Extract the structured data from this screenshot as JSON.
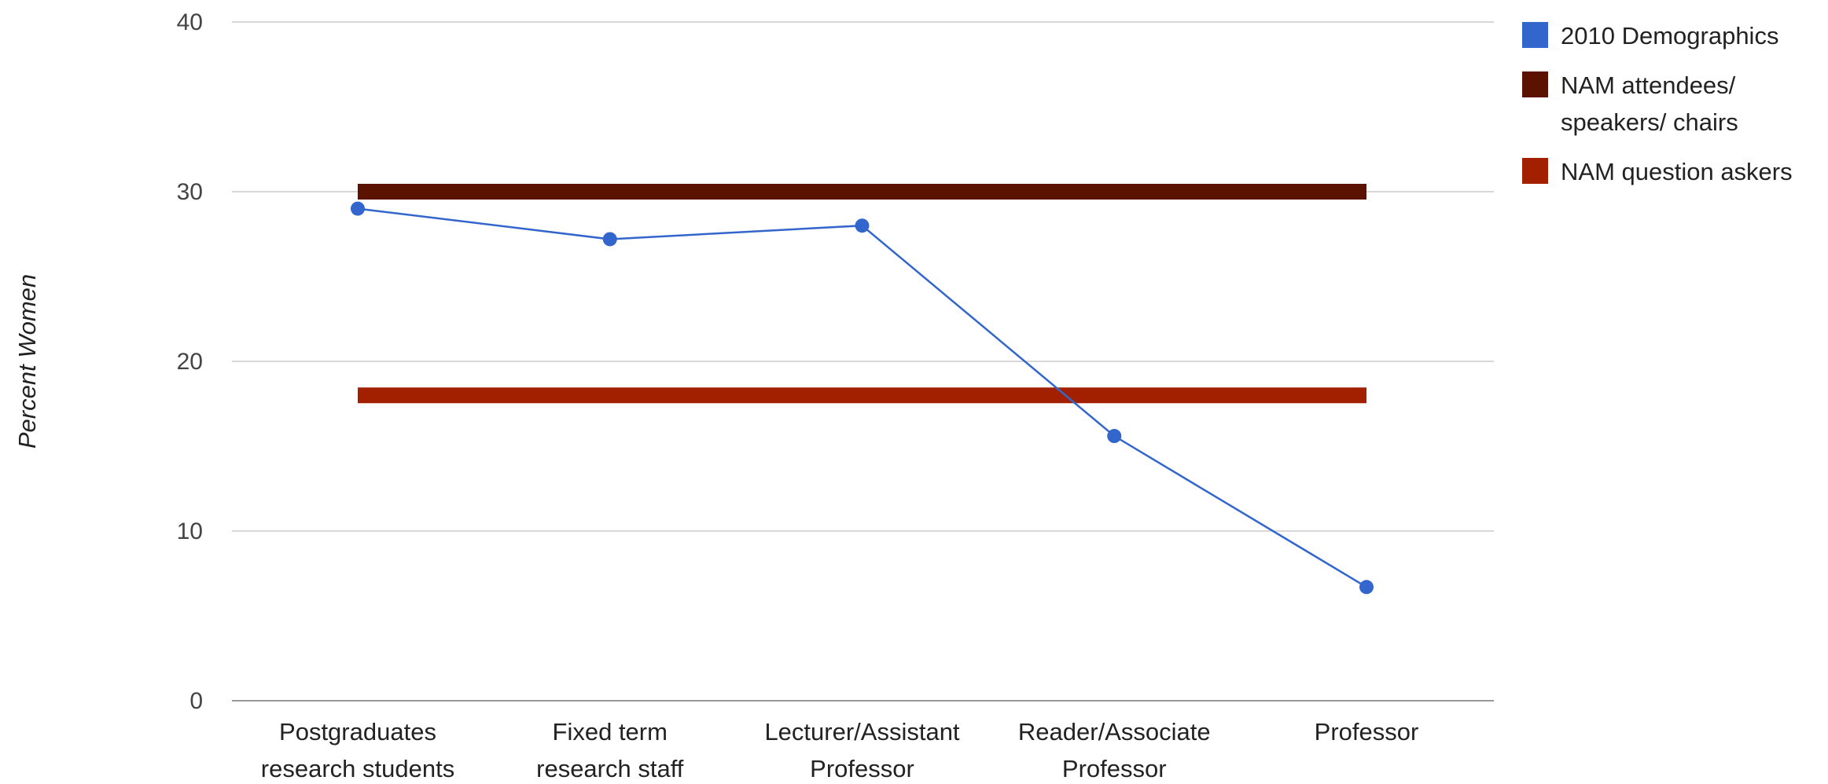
{
  "chart_data": {
    "type": "line",
    "title": "",
    "ylabel": "Percent Women",
    "xlabel": "",
    "ylim": [
      0,
      40
    ],
    "yticks": [
      0,
      10,
      20,
      30,
      40
    ],
    "grid": true,
    "legend_position": "right",
    "categories": [
      [
        "Postgraduates",
        "research students"
      ],
      [
        "Fixed term",
        "research staff"
      ],
      [
        "Lecturer/Assistant",
        "Professor"
      ],
      [
        "Reader/Associate",
        "Professor"
      ],
      [
        "Professor"
      ]
    ],
    "series": [
      {
        "name": "2010 Demographics",
        "color": "#3366cc",
        "style": "line-with-markers",
        "values": [
          29.0,
          27.2,
          28.0,
          15.6,
          6.7
        ]
      },
      {
        "name": [
          "NAM attendees/",
          "speakers/ chairs"
        ],
        "color": "#5c1200",
        "style": "thick-line",
        "values": [
          30,
          30,
          30,
          30,
          30
        ]
      },
      {
        "name": "NAM question askers",
        "color": "#a21f00",
        "style": "thick-line",
        "values": [
          18,
          18,
          18,
          18,
          18
        ]
      }
    ]
  }
}
